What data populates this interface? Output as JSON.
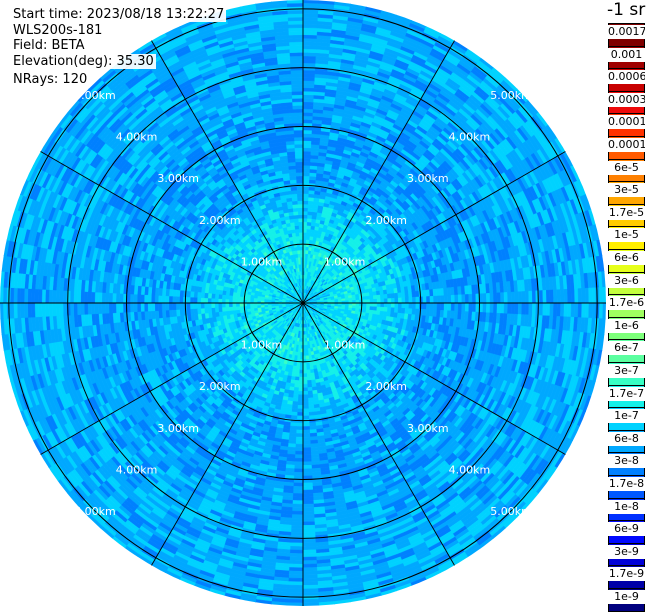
{
  "info": {
    "start_time": "Start time: 2023/08/18 13:22:27",
    "device": "WLS200s-181",
    "field": "Field: BETA",
    "elevation": "Elevation(deg): 35.30",
    "nrays": "NRays: 120"
  },
  "colorbar": {
    "unit_title": "-1 sr",
    "labels": [
      "0.0017",
      "0.001",
      "0.0006",
      "0.0003",
      "0.00017",
      "0.0001",
      "6e-5",
      "3e-5",
      "1.7e-5",
      "1e-5",
      "6e-6",
      "3e-6",
      "1.7e-6",
      "1e-6",
      "6e-7",
      "3e-7",
      "1.7e-7",
      "1e-7",
      "6e-8",
      "3e-8",
      "1.7e-8",
      "1e-8",
      "6e-9",
      "3e-9",
      "1.7e-9",
      "1e-9"
    ],
    "colors": [
      "#7f0000",
      "#a00000",
      "#c80000",
      "#ee0a0a",
      "#ff3300",
      "#ff5a00",
      "#ff8000",
      "#ffa600",
      "#ffcc00",
      "#ffee00",
      "#e6ff1a",
      "#c3ff3c",
      "#9fff60",
      "#7dff7a",
      "#5cffa0",
      "#38ffc4",
      "#14f0e8",
      "#00d2ff",
      "#00a8ff",
      "#0080ff",
      "#0058ff",
      "#0030ff",
      "#0008ff",
      "#0000d8",
      "#0000a8",
      "#00007f"
    ]
  },
  "chart_data": {
    "type": "polar-ppi",
    "field": "BETA",
    "unit": "sr-1",
    "elevation_deg": 35.3,
    "n_rays": 120,
    "range_rings": [
      {
        "label": "1.00km",
        "range_km": 1.0
      },
      {
        "label": "2.00km",
        "range_km": 2.0
      },
      {
        "label": "3.00km",
        "range_km": 3.0
      },
      {
        "label": "4.00km",
        "range_km": 4.0
      },
      {
        "label": "5.00km",
        "range_km": 5.0
      }
    ],
    "max_range_km": 5.15,
    "spokes_deg": [
      0,
      30,
      60,
      90,
      120,
      150,
      180,
      210,
      240,
      270,
      300,
      330
    ],
    "radial_profile": [
      {
        "range_km": 0.0,
        "beta": 8e-08
      },
      {
        "range_km": 0.4,
        "beta": 1.2e-07
      },
      {
        "range_km": 0.8,
        "beta": 1.5e-07
      },
      {
        "range_km": 1.2,
        "beta": 1.2e-07
      },
      {
        "range_km": 1.6,
        "beta": 9e-08
      },
      {
        "range_km": 2.0,
        "beta": 6e-08
      },
      {
        "range_km": 2.5,
        "beta": 5e-08
      },
      {
        "range_km": 3.0,
        "beta": 5e-08
      },
      {
        "range_km": 3.5,
        "beta": 5.5e-08
      },
      {
        "range_km": 4.0,
        "beta": 6e-08
      },
      {
        "range_km": 4.5,
        "beta": 6e-08
      },
      {
        "range_km": 5.0,
        "beta": 6.5e-08
      }
    ],
    "color_scale": "log"
  }
}
